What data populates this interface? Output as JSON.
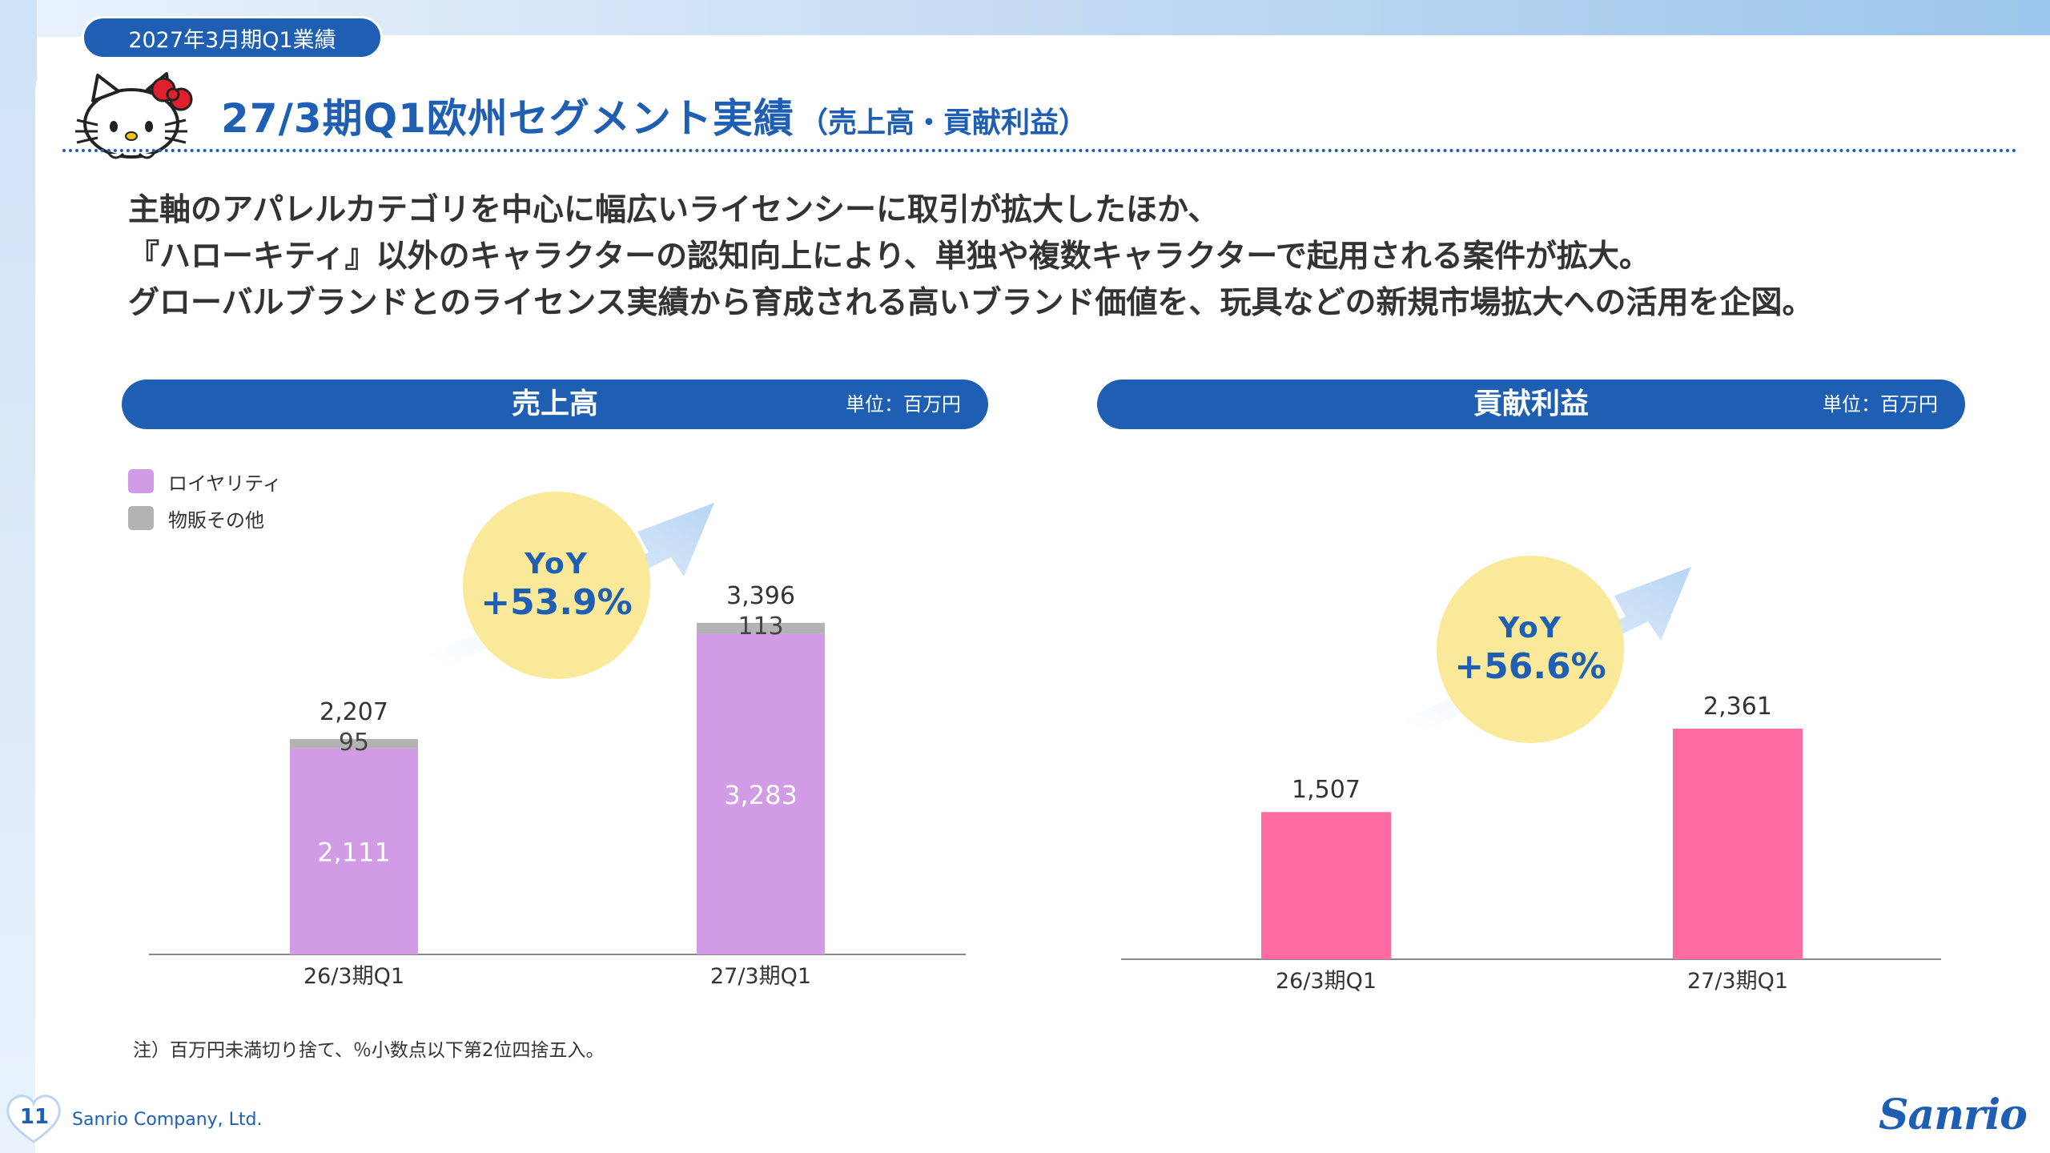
{
  "header": {
    "period_badge": "2027年3月期Q1業績",
    "title": "27/3期Q1欧州セグメント実績",
    "title_sub": "（売上高・貢献利益）"
  },
  "lead": {
    "lines": [
      "主軸のアパレルカテゴリを中心に幅広いライセンシーに取引が拡大したほか、",
      "『ハローキティ』以外のキャラクターの認知向上により、単独や複数キャラクターで起用される案件が拡大。",
      "グローバルブランドとのライセンス実績から育成される高いブランド価値を、玩具などの新規市場拡大への活用を企図。"
    ]
  },
  "sections": {
    "sales": {
      "title": "売上高",
      "unit": "単位：百万円"
    },
    "profit": {
      "title": "貢献利益",
      "unit": "単位：百万円"
    }
  },
  "legend": [
    {
      "label": "ロイヤリティ",
      "color": "#d19be6"
    },
    {
      "label": "物販その他",
      "color": "#b3b3b3"
    }
  ],
  "yoy": {
    "sales": {
      "label": "YoY",
      "value": "+53.9%"
    },
    "profit": {
      "label": "YoY",
      "value": "+56.6%"
    }
  },
  "chart_data": [
    {
      "type": "bar",
      "stacked": true,
      "categories": [
        "26/3期Q1",
        "27/3期Q1"
      ],
      "series": [
        {
          "name": "ロイヤリティ",
          "values": [
            2111,
            3283
          ],
          "color": "#d19be6"
        },
        {
          "name": "物販その他",
          "values": [
            95,
            113
          ],
          "color": "#b3b3b3"
        }
      ],
      "totals": [
        "2,207",
        "3,396"
      ],
      "value_labels": {
        "ロイヤリティ": [
          "2,111",
          "3,283"
        ],
        "物販その他": [
          "95",
          "113"
        ]
      },
      "ylim": [
        0,
        4100
      ],
      "grid": false
    },
    {
      "type": "bar",
      "categories": [
        "26/3期Q1",
        "27/3期Q1"
      ],
      "series": [
        {
          "values": [
            1507,
            2361
          ],
          "color": "#ff6ba3"
        }
      ],
      "value_labels": [
        "1,507",
        "2,361"
      ],
      "ylim": [
        0,
        4100
      ],
      "grid": false
    }
  ],
  "footnote": "注）百万円未満切り捨て、％小数点以下第2位四捨五入。",
  "footer": {
    "page_number": "11",
    "company": "Sanrio Company, Ltd.",
    "brand": "Sanrio"
  },
  "colors": {
    "brand_blue": "#1e5fb3",
    "bubble": "#fbe99a",
    "arrow": "#cfe3f7"
  },
  "icons": [
    "hello-kitty-mascot",
    "heart-icon",
    "trend-arrow-icon"
  ]
}
